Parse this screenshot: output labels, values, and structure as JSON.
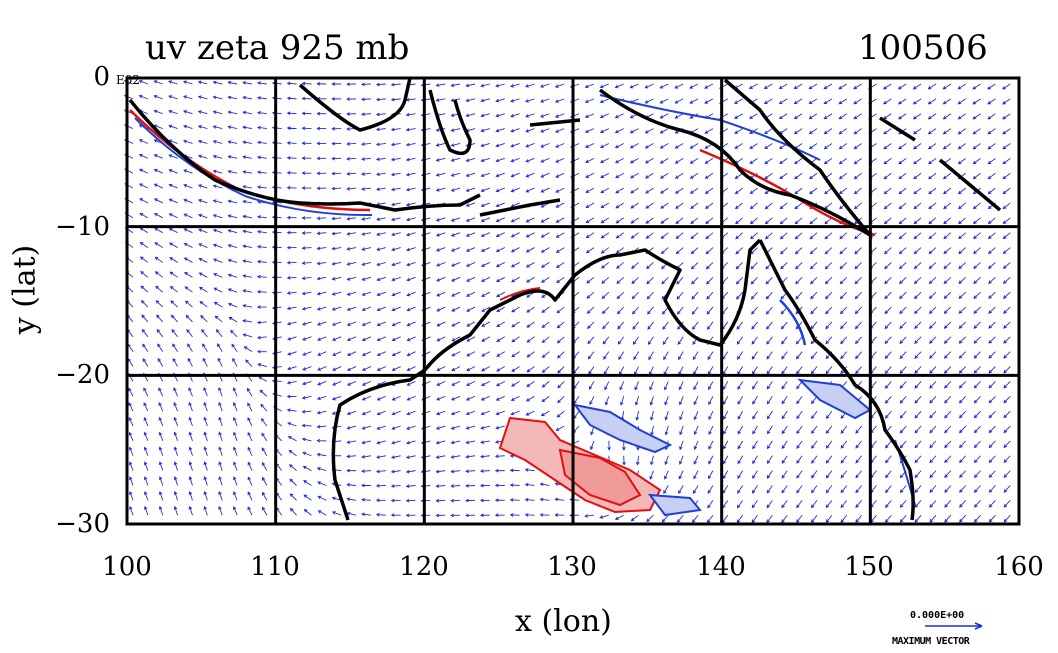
{
  "title": "uv zeta 925 mb",
  "date_label": "100506",
  "top_left_small": "E02",
  "map": {
    "xlabel": "x (lon)",
    "ylabel": "y (lat)",
    "x_ticks": [
      "100",
      "110",
      "120",
      "130",
      "140",
      "150",
      "160"
    ],
    "y_ticks": [
      "0",
      "−10",
      "−20",
      "−30"
    ],
    "xlim": [
      100,
      160
    ],
    "ylim": [
      -30,
      0
    ],
    "grid": true,
    "vector_color": "#1f2fd6",
    "positive_contour_color": "#e01010",
    "negative_contour_color": "#2040d8",
    "coast_color": "#000000"
  },
  "legend": {
    "vector_value": "0.000E+00",
    "vector_label": "MAXIMUM VECTOR"
  }
}
